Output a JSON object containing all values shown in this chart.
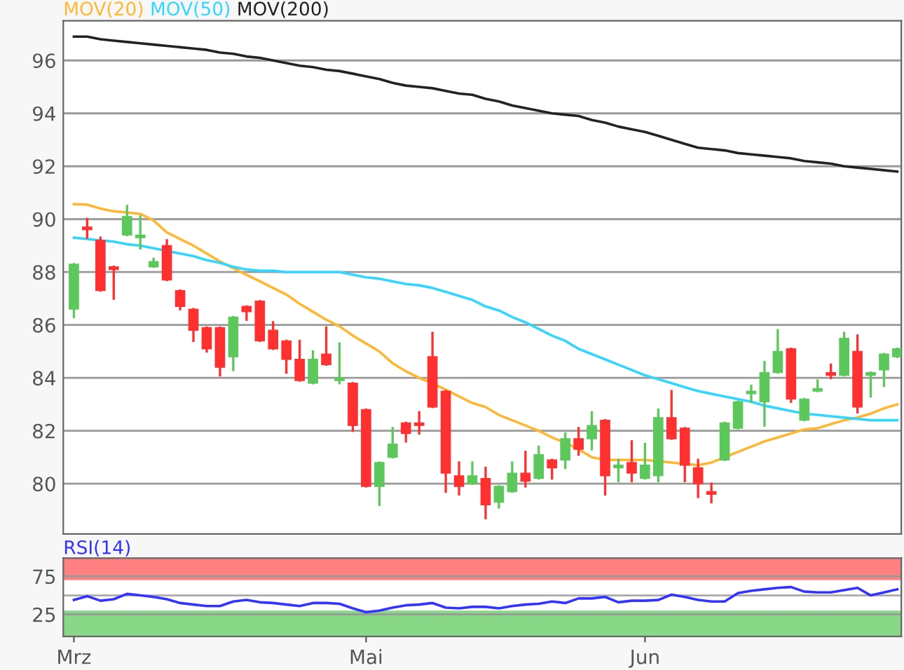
{
  "chart_data": [
    {
      "type": "candlestick",
      "ohlc": [
        [
          86.6,
          88.3,
          86.3,
          88.3
        ],
        [
          89.7,
          90.0,
          89.3,
          89.6
        ],
        [
          89.2,
          89.3,
          87.3,
          87.3
        ],
        [
          88.2,
          88.2,
          87.0,
          88.1
        ],
        [
          89.4,
          90.5,
          89.4,
          90.1
        ],
        [
          89.3,
          90.1,
          88.9,
          89.4
        ],
        [
          88.2,
          88.5,
          88.2,
          88.4
        ],
        [
          89.0,
          89.2,
          87.7,
          87.7
        ],
        [
          87.3,
          87.3,
          86.6,
          86.7
        ],
        [
          86.6,
          86.6,
          85.4,
          85.8
        ],
        [
          85.9,
          85.9,
          85.0,
          85.1
        ],
        [
          85.9,
          85.9,
          84.1,
          84.4
        ],
        [
          84.8,
          86.3,
          84.3,
          86.3
        ],
        [
          86.7,
          86.7,
          86.2,
          86.5
        ],
        [
          86.9,
          86.9,
          85.4,
          85.4
        ],
        [
          85.8,
          86.1,
          85.1,
          85.1
        ],
        [
          85.4,
          85.4,
          84.2,
          84.7
        ],
        [
          84.7,
          85.4,
          83.9,
          83.9
        ],
        [
          83.8,
          85.0,
          83.8,
          84.7
        ],
        [
          84.9,
          85.9,
          84.5,
          84.5
        ],
        [
          83.9,
          85.3,
          83.8,
          84.0
        ],
        [
          83.8,
          83.8,
          82.0,
          82.2
        ],
        [
          82.8,
          82.8,
          79.9,
          79.9
        ],
        [
          79.9,
          80.8,
          79.2,
          80.8
        ],
        [
          81.0,
          82.1,
          81.0,
          81.5
        ],
        [
          82.3,
          82.3,
          81.6,
          81.9
        ],
        [
          82.3,
          82.7,
          81.9,
          82.2
        ],
        [
          84.8,
          85.7,
          82.9,
          82.9
        ],
        [
          83.5,
          83.5,
          79.7,
          80.4
        ],
        [
          80.3,
          80.8,
          79.6,
          79.9
        ],
        [
          80.0,
          80.8,
          80.0,
          80.3
        ],
        [
          80.2,
          80.6,
          78.7,
          79.2
        ],
        [
          79.3,
          79.9,
          79.1,
          79.9
        ],
        [
          79.7,
          80.8,
          79.7,
          80.4
        ],
        [
          80.4,
          81.2,
          79.9,
          80.1
        ],
        [
          80.2,
          81.4,
          80.2,
          81.1
        ],
        [
          80.9,
          80.9,
          80.2,
          80.6
        ],
        [
          80.9,
          81.9,
          80.6,
          81.7
        ],
        [
          81.7,
          82.1,
          81.1,
          81.3
        ],
        [
          81.7,
          82.7,
          81.3,
          82.2
        ],
        [
          82.4,
          82.4,
          79.6,
          80.3
        ],
        [
          80.6,
          80.9,
          80.1,
          80.7
        ],
        [
          80.8,
          81.6,
          80.1,
          80.4
        ],
        [
          80.2,
          81.5,
          80.2,
          80.7
        ],
        [
          80.3,
          82.8,
          80.1,
          82.5
        ],
        [
          82.5,
          83.5,
          81.7,
          81.7
        ],
        [
          82.1,
          82.1,
          80.1,
          80.7
        ],
        [
          80.6,
          80.9,
          79.5,
          80.0
        ],
        [
          79.7,
          80.0,
          79.3,
          79.6
        ],
        [
          80.9,
          82.3,
          80.9,
          82.3
        ],
        [
          82.1,
          83.1,
          82.1,
          83.1
        ],
        [
          83.4,
          83.7,
          83.1,
          83.5
        ],
        [
          83.1,
          84.6,
          82.2,
          84.2
        ],
        [
          84.2,
          85.8,
          84.2,
          85.0
        ],
        [
          85.1,
          85.1,
          83.1,
          83.2
        ],
        [
          82.4,
          83.2,
          82.4,
          83.2
        ],
        [
          83.5,
          83.9,
          83.5,
          83.6
        ],
        [
          84.2,
          84.5,
          84.0,
          84.1
        ],
        [
          84.1,
          85.7,
          84.1,
          85.5
        ],
        [
          85.0,
          85.6,
          82.7,
          82.9
        ],
        [
          84.1,
          84.2,
          83.3,
          84.2
        ],
        [
          84.3,
          84.9,
          83.7,
          84.9
        ],
        [
          84.8,
          85.1,
          84.8,
          85.1
        ]
      ],
      "colors": [
        "#5cc85c",
        "#ff3030",
        "#ff3030",
        "#ff3030",
        "#5cc85c",
        "#5cc85c",
        "#5cc85c",
        "#ff3030",
        "#ff3030",
        "#ff3030",
        "#ff3030",
        "#ff3030",
        "#5cc85c",
        "#ff3030",
        "#ff3030",
        "#ff3030",
        "#ff3030",
        "#ff3030",
        "#5cc85c",
        "#ff3030",
        "#5cc85c",
        "#ff3030",
        "#ff3030",
        "#5cc85c",
        "#5cc85c",
        "#ff3030",
        "#ff3030",
        "#ff3030",
        "#ff3030",
        "#ff3030",
        "#5cc85c",
        "#ff3030",
        "#5cc85c",
        "#5cc85c",
        "#ff3030",
        "#5cc85c",
        "#ff3030",
        "#5cc85c",
        "#ff3030",
        "#5cc85c",
        "#ff3030",
        "#5cc85c",
        "#ff3030",
        "#5cc85c",
        "#5cc85c",
        "#ff3030",
        "#ff3030",
        "#ff3030",
        "#ff3030",
        "#5cc85c",
        "#5cc85c",
        "#5cc85c",
        "#5cc85c",
        "#5cc85c",
        "#ff3030",
        "#5cc85c",
        "#5cc85c",
        "#ff3030",
        "#5cc85c",
        "#ff3030",
        "#5cc85c",
        "#5cc85c",
        "#5cc85c"
      ],
      "series": [
        {
          "type": "line",
          "name": "MOV(20)",
          "color": "#ffb733",
          "values": [
            90.57,
            90.55,
            90.4,
            90.3,
            90.25,
            90.2,
            89.95,
            89.5,
            89.25,
            89.0,
            88.7,
            88.4,
            88.15,
            87.9,
            87.65,
            87.4,
            87.15,
            86.8,
            86.5,
            86.2,
            85.95,
            85.6,
            85.3,
            85.0,
            84.55,
            84.25,
            84.0,
            83.8,
            83.55,
            83.3,
            83.05,
            82.9,
            82.6,
            82.4,
            82.2,
            82.0,
            81.75,
            81.55,
            81.3,
            81.0,
            80.9,
            80.9,
            80.9,
            80.9,
            80.85,
            80.8,
            80.75,
            80.7,
            80.8,
            81.0,
            81.2,
            81.4,
            81.6,
            81.75,
            81.9,
            82.05,
            82.1,
            82.25,
            82.4,
            82.5,
            82.65,
            82.85,
            83.0
          ]
        },
        {
          "type": "line",
          "name": "MOV(50)",
          "color": "#33d6ff",
          "values": [
            89.3,
            89.25,
            89.2,
            89.15,
            89.05,
            89.0,
            88.9,
            88.8,
            88.7,
            88.6,
            88.45,
            88.35,
            88.2,
            88.1,
            88.05,
            88.05,
            88.0,
            88.0,
            88.0,
            88.0,
            88.0,
            87.9,
            87.8,
            87.75,
            87.65,
            87.55,
            87.5,
            87.4,
            87.25,
            87.1,
            86.95,
            86.7,
            86.55,
            86.3,
            86.1,
            85.85,
            85.6,
            85.4,
            85.1,
            84.9,
            84.7,
            84.5,
            84.3,
            84.1,
            83.95,
            83.8,
            83.65,
            83.5,
            83.4,
            83.3,
            83.2,
            83.1,
            82.95,
            82.85,
            82.75,
            82.65,
            82.6,
            82.55,
            82.5,
            82.45,
            82.4,
            82.4,
            82.4
          ]
        },
        {
          "type": "line",
          "name": "MOV(200)",
          "color": "#222222",
          "values": [
            96.9,
            96.9,
            96.8,
            96.75,
            96.7,
            96.65,
            96.6,
            96.55,
            96.5,
            96.45,
            96.4,
            96.3,
            96.25,
            96.15,
            96.1,
            96.0,
            95.9,
            95.8,
            95.75,
            95.65,
            95.6,
            95.5,
            95.4,
            95.3,
            95.15,
            95.05,
            95.0,
            94.95,
            94.85,
            94.75,
            94.7,
            94.55,
            94.45,
            94.3,
            94.2,
            94.1,
            94.0,
            93.95,
            93.9,
            93.75,
            93.65,
            93.5,
            93.4,
            93.3,
            93.15,
            93.0,
            92.85,
            92.7,
            92.65,
            92.6,
            92.5,
            92.45,
            92.4,
            92.35,
            92.3,
            92.2,
            92.15,
            92.1,
            92.0,
            91.95,
            91.9,
            91.85,
            91.8
          ]
        }
      ],
      "ylim": [
        78.1,
        97.5
      ],
      "yticks": [
        80,
        82,
        84,
        86,
        88,
        90,
        92,
        94,
        96
      ],
      "grid": "y",
      "tick_labels": "y"
    },
    {
      "type": "line",
      "categories": [
        "Mrz",
        null,
        null,
        null,
        null,
        null,
        null,
        null,
        null,
        null,
        null,
        null,
        null,
        null,
        null,
        null,
        null,
        null,
        null,
        null,
        null,
        null,
        "Mai",
        null,
        null,
        null,
        null,
        null,
        null,
        null,
        null,
        null,
        null,
        null,
        null,
        null,
        null,
        null,
        null,
        null,
        null,
        null,
        null,
        "Jun",
        null,
        null,
        null,
        null,
        null,
        null,
        null,
        null,
        null,
        null,
        null,
        null,
        null,
        null,
        null,
        null,
        null,
        null,
        null
      ],
      "series": [
        {
          "name": "RSI(14)",
          "color": "#3333ff",
          "values": [
            44,
            49,
            43,
            45,
            52,
            50,
            48,
            45,
            40,
            38,
            36,
            36,
            42,
            44,
            41,
            40,
            38,
            36,
            40,
            40,
            39,
            33,
            28,
            30,
            34,
            37,
            38,
            40,
            34,
            33,
            35,
            35,
            33,
            36,
            38,
            39,
            42,
            40,
            46,
            46,
            48,
            41,
            43,
            43,
            44,
            51,
            48,
            44,
            42,
            42,
            53,
            56,
            58,
            60,
            61,
            55,
            54,
            54,
            57,
            60,
            50,
            54,
            58
          ]
        }
      ],
      "ylim": [
        -4,
        99
      ],
      "yticks": [
        25,
        75
      ],
      "grid": "y",
      "bands": [
        {
          "axis": "y",
          "from": 70,
          "to": 99,
          "color": "#ff8080"
        },
        {
          "axis": "y",
          "from": -4,
          "to": 30,
          "color": "#88d888"
        }
      ],
      "ref_lines": [
        {
          "axis": "y",
          "value": 50,
          "color": "#aaaaaa"
        }
      ]
    }
  ]
}
